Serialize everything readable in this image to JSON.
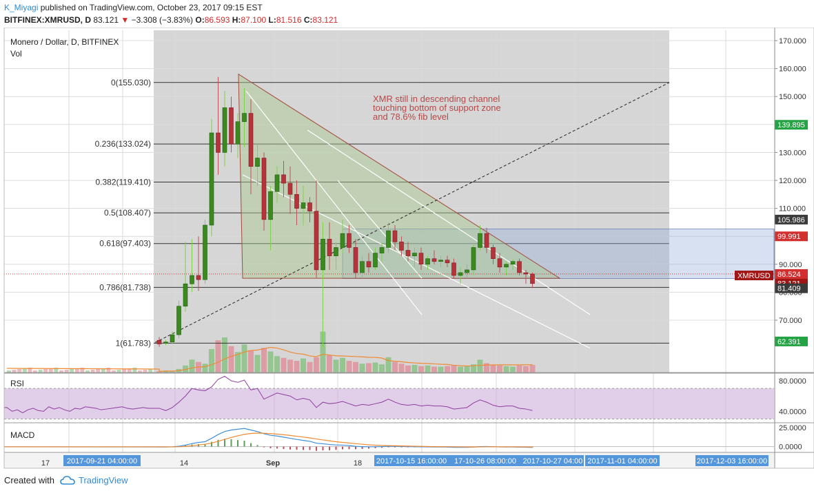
{
  "header": {
    "author": "K_Miyagi",
    "published_text": "published on TradingView.com, October 23, 2017 09:15 EST",
    "symbol_line": "BITFINEX:XMRUSD, D",
    "last": "83.121",
    "change": "−3.308 (−3.83%)",
    "o_label": "O:",
    "o_value": "86.593",
    "h_label": "H:",
    "h_value": "87.100",
    "l_label": "L:",
    "l_value": "81.516",
    "c_label": "C:",
    "c_value": "83.121"
  },
  "footer": {
    "created_with": "Created with",
    "brand": "TradingView"
  },
  "colors": {
    "up": "#3c8a1f",
    "down": "#b8323a",
    "rsi_line": "#8e3c9c",
    "macd_line": "#3d8fd8",
    "signal_line": "#f08a32",
    "green_label": "#23a343",
    "red_label": "#d32f2f",
    "axis_badge": "#4a90d9"
  },
  "chart_data": {
    "type": "candlestick",
    "main_title": "Monero / Dollar, D, BITFINEX",
    "vol_label": "Vol",
    "y_axis_ticks": [
      "170.000",
      "160.000",
      "150.000",
      "140.000",
      "130.000",
      "120.000",
      "110.000",
      "100.000",
      "90.000",
      "80.000",
      "70.000"
    ],
    "ylim": [
      52,
      174
    ],
    "price_labels": [
      {
        "text": "139.895",
        "price": 139.895,
        "color": "green"
      },
      {
        "text": "105.986",
        "price": 105.986,
        "color": "dark"
      },
      {
        "text": "99.991",
        "price": 99.991,
        "color": "red"
      },
      {
        "text": "86.524",
        "price": 86.524,
        "color": "red"
      },
      {
        "text": "83.121",
        "price": 83.121,
        "color": "darkred"
      },
      {
        "text": "81.409",
        "price": 81.409,
        "color": "dark"
      },
      {
        "text": "62.391",
        "price": 62.391,
        "color": "green"
      }
    ],
    "symbol_tag": "XMRUSD",
    "fib_levels": [
      {
        "label": "0(155.030)",
        "price": 155.03
      },
      {
        "label": "0.236(133.024)",
        "price": 133.024
      },
      {
        "label": "0.382(119.410)",
        "price": 119.41
      },
      {
        "label": "0.5(108.407)",
        "price": 108.407
      },
      {
        "label": "0.618(97.403)",
        "price": 97.403
      },
      {
        "label": "0.786(81.738)",
        "price": 81.738
      },
      {
        "label": "1(61.783)",
        "price": 61.783
      }
    ],
    "annotation": [
      "XMR still in descending channel",
      "touching bottom of support zone",
      "and 78.6% fib level"
    ],
    "x_tick_labels": [
      "17",
      "14",
      "Sep",
      "18"
    ],
    "x_time_badges": [
      "2017-09-21 04:00:00",
      "2017-10-15 16:00:00",
      "17-10-26 08:00:00",
      "2017-10-27 04:00",
      "2017-11-01 04:00:00",
      "2017-12-03 16:00:00"
    ],
    "candles": [
      {
        "o": 62.8,
        "h": 64.0,
        "l": 60.5,
        "c": 61.5
      },
      {
        "o": 61.8,
        "h": 63.0,
        "l": 61.0,
        "c": 62.2
      },
      {
        "o": 62.2,
        "h": 66.0,
        "l": 61.5,
        "c": 64.8
      },
      {
        "o": 64.8,
        "h": 77.0,
        "l": 63.5,
        "c": 75.0
      },
      {
        "o": 75.0,
        "h": 98.0,
        "l": 73.0,
        "c": 83.0
      },
      {
        "o": 83.0,
        "h": 99.0,
        "l": 80.0,
        "c": 86.0
      },
      {
        "o": 86.0,
        "h": 100.0,
        "l": 80.5,
        "c": 84.5
      },
      {
        "o": 84.5,
        "h": 106.0,
        "l": 83.0,
        "c": 104.0
      },
      {
        "o": 104.0,
        "h": 142.0,
        "l": 100.0,
        "c": 137.0
      },
      {
        "o": 137.0,
        "h": 157.0,
        "l": 122.0,
        "c": 130.0
      },
      {
        "o": 130.0,
        "h": 152.0,
        "l": 125.0,
        "c": 146.0
      },
      {
        "o": 146.0,
        "h": 150.0,
        "l": 130.0,
        "c": 133.0
      },
      {
        "o": 133.0,
        "h": 144.0,
        "l": 128.0,
        "c": 141.0
      },
      {
        "o": 141.0,
        "h": 153.0,
        "l": 132.0,
        "c": 144.0
      },
      {
        "o": 144.0,
        "h": 149.0,
        "l": 115.0,
        "c": 125.0
      },
      {
        "o": 125.0,
        "h": 133.0,
        "l": 118.0,
        "c": 128.0
      },
      {
        "o": 128.0,
        "h": 130.0,
        "l": 102.0,
        "c": 106.0
      },
      {
        "o": 106.0,
        "h": 118.0,
        "l": 95.0,
        "c": 116.0
      },
      {
        "o": 116.0,
        "h": 125.0,
        "l": 112.0,
        "c": 122.0
      },
      {
        "o": 122.0,
        "h": 127.0,
        "l": 114.0,
        "c": 119.0
      },
      {
        "o": 119.0,
        "h": 125.0,
        "l": 108.0,
        "c": 115.0
      },
      {
        "o": 115.0,
        "h": 120.0,
        "l": 104.0,
        "c": 110.0
      },
      {
        "o": 110.0,
        "h": 118.0,
        "l": 104.0,
        "c": 112.0
      },
      {
        "o": 112.0,
        "h": 114.0,
        "l": 105.0,
        "c": 109.0
      },
      {
        "o": 109.0,
        "h": 120.0,
        "l": 85.0,
        "c": 88.0
      },
      {
        "o": 88.0,
        "h": 105.0,
        "l": 60.0,
        "c": 99.0
      },
      {
        "o": 99.0,
        "h": 105.0,
        "l": 88.0,
        "c": 93.0
      },
      {
        "o": 93.0,
        "h": 98.0,
        "l": 88.0,
        "c": 96.0
      },
      {
        "o": 96.0,
        "h": 106.0,
        "l": 94.0,
        "c": 101.0
      },
      {
        "o": 101.0,
        "h": 104.0,
        "l": 94.0,
        "c": 96.0
      },
      {
        "o": 96.0,
        "h": 99.0,
        "l": 85.0,
        "c": 87.0
      },
      {
        "o": 87.0,
        "h": 93.0,
        "l": 85.0,
        "c": 91.0
      },
      {
        "o": 91.0,
        "h": 94.0,
        "l": 87.0,
        "c": 89.0
      },
      {
        "o": 89.0,
        "h": 96.0,
        "l": 88.0,
        "c": 94.0
      },
      {
        "o": 94.0,
        "h": 98.0,
        "l": 91.0,
        "c": 96.0
      },
      {
        "o": 96.0,
        "h": 105.0,
        "l": 94.0,
        "c": 102.0
      },
      {
        "o": 102.0,
        "h": 104.0,
        "l": 95.0,
        "c": 98.0
      },
      {
        "o": 98.0,
        "h": 100.0,
        "l": 93.0,
        "c": 95.0
      },
      {
        "o": 95.0,
        "h": 98.0,
        "l": 91.0,
        "c": 93.0
      },
      {
        "o": 93.0,
        "h": 96.0,
        "l": 89.0,
        "c": 94.0
      },
      {
        "o": 94.0,
        "h": 96.0,
        "l": 88.0,
        "c": 90.0
      },
      {
        "o": 90.0,
        "h": 93.0,
        "l": 88.0,
        "c": 92.0
      },
      {
        "o": 92.0,
        "h": 95.0,
        "l": 90.0,
        "c": 91.0
      },
      {
        "o": 91.0,
        "h": 93.0,
        "l": 89.0,
        "c": 91.5
      },
      {
        "o": 91.5,
        "h": 93.0,
        "l": 89.0,
        "c": 90.5
      },
      {
        "o": 90.5,
        "h": 92.0,
        "l": 85.0,
        "c": 86.0
      },
      {
        "o": 86.0,
        "h": 89.0,
        "l": 83.0,
        "c": 87.0
      },
      {
        "o": 87.0,
        "h": 90.0,
        "l": 85.0,
        "c": 88.0
      },
      {
        "o": 88.0,
        "h": 97.0,
        "l": 86.0,
        "c": 96.0
      },
      {
        "o": 96.0,
        "h": 104.0,
        "l": 95.0,
        "c": 101.0
      },
      {
        "o": 101.0,
        "h": 103.0,
        "l": 94.0,
        "c": 96.0
      },
      {
        "o": 96.0,
        "h": 97.0,
        "l": 90.0,
        "c": 92.0
      },
      {
        "o": 92.0,
        "h": 94.0,
        "l": 87.0,
        "c": 89.0
      },
      {
        "o": 89.0,
        "h": 91.0,
        "l": 86.0,
        "c": 90.0
      },
      {
        "o": 90.0,
        "h": 92.0,
        "l": 88.0,
        "c": 91.0
      },
      {
        "o": 91.0,
        "h": 92.0,
        "l": 86.0,
        "c": 87.0
      },
      {
        "o": 87.0,
        "h": 88.0,
        "l": 83.0,
        "c": 86.5
      },
      {
        "o": 86.5,
        "h": 87.1,
        "l": 81.5,
        "c": 83.1
      }
    ],
    "volume": [
      2,
      3,
      2,
      6,
      12,
      22,
      18,
      15,
      40,
      55,
      60,
      45,
      35,
      48,
      38,
      30,
      42,
      36,
      28,
      25,
      22,
      20,
      24,
      18,
      26,
      70,
      30,
      22,
      25,
      20,
      18,
      15,
      16,
      17,
      14,
      26,
      18,
      15,
      12,
      13,
      11,
      12,
      10,
      10,
      11,
      12,
      10,
      11,
      14,
      22,
      16,
      13,
      12,
      11,
      10,
      12,
      11,
      13
    ],
    "rsi_label": "RSI",
    "rsi_ticks": [
      "80.0000",
      "40.0000"
    ],
    "rsi_values": [
      44,
      41,
      45,
      52,
      60,
      70,
      68,
      67,
      72,
      82,
      86,
      80,
      78,
      81,
      68,
      70,
      56,
      60,
      64,
      62,
      60,
      55,
      57,
      55,
      45,
      52,
      50,
      51,
      53,
      50,
      47,
      49,
      48,
      50,
      52,
      56,
      52,
      49,
      48,
      49,
      47,
      48,
      47,
      47,
      46,
      43,
      44,
      45,
      51,
      55,
      52,
      48,
      46,
      47,
      47,
      44,
      43,
      41
    ],
    "macd_label": "MACD",
    "macd_ticks": [
      "25.0000",
      "0.0000"
    ],
    "macd_values": [
      -0.5,
      -0.5,
      -0.3,
      0.5,
      2.0,
      4.0,
      5.5,
      6.5,
      11,
      16,
      20,
      22,
      23,
      24,
      22,
      20,
      17,
      15,
      14,
      12.5,
      11,
      9.5,
      8.2,
      7,
      4.5,
      3.8,
      2.8,
      2.2,
      2.0,
      1.4,
      0.4,
      0.0,
      -0.3,
      -0.2,
      0.0,
      0.5,
      0.4,
      0.2,
      0.0,
      -0.1,
      -0.3,
      -0.4,
      -0.5,
      -0.5,
      -0.6,
      -0.9,
      -1.0,
      -1.0,
      -0.6,
      0.0,
      0.1,
      -0.1,
      -0.4,
      -0.5,
      -0.5,
      -0.7,
      -0.8,
      -1.1
    ],
    "signal_values": [
      -0.3,
      -0.4,
      -0.4,
      -0.2,
      0.3,
      1.2,
      2.2,
      3.1,
      4.7,
      7.0,
      9.6,
      12.1,
      14.3,
      16.2,
      17.4,
      17.9,
      17.7,
      17.2,
      16.5,
      15.7,
      14.8,
      13.7,
      12.6,
      11.5,
      10.1,
      8.8,
      7.6,
      6.5,
      5.6,
      4.8,
      3.9,
      3.1,
      2.4,
      1.9,
      1.5,
      1.3,
      1.1,
      0.9,
      0.7,
      0.5,
      0.3,
      0.1,
      0.0,
      -0.1,
      -0.2,
      -0.3,
      -0.4,
      -0.5,
      -0.5,
      -0.4,
      -0.3,
      -0.2,
      -0.3,
      -0.3,
      -0.3,
      -0.4,
      -0.5,
      -0.6
    ]
  }
}
